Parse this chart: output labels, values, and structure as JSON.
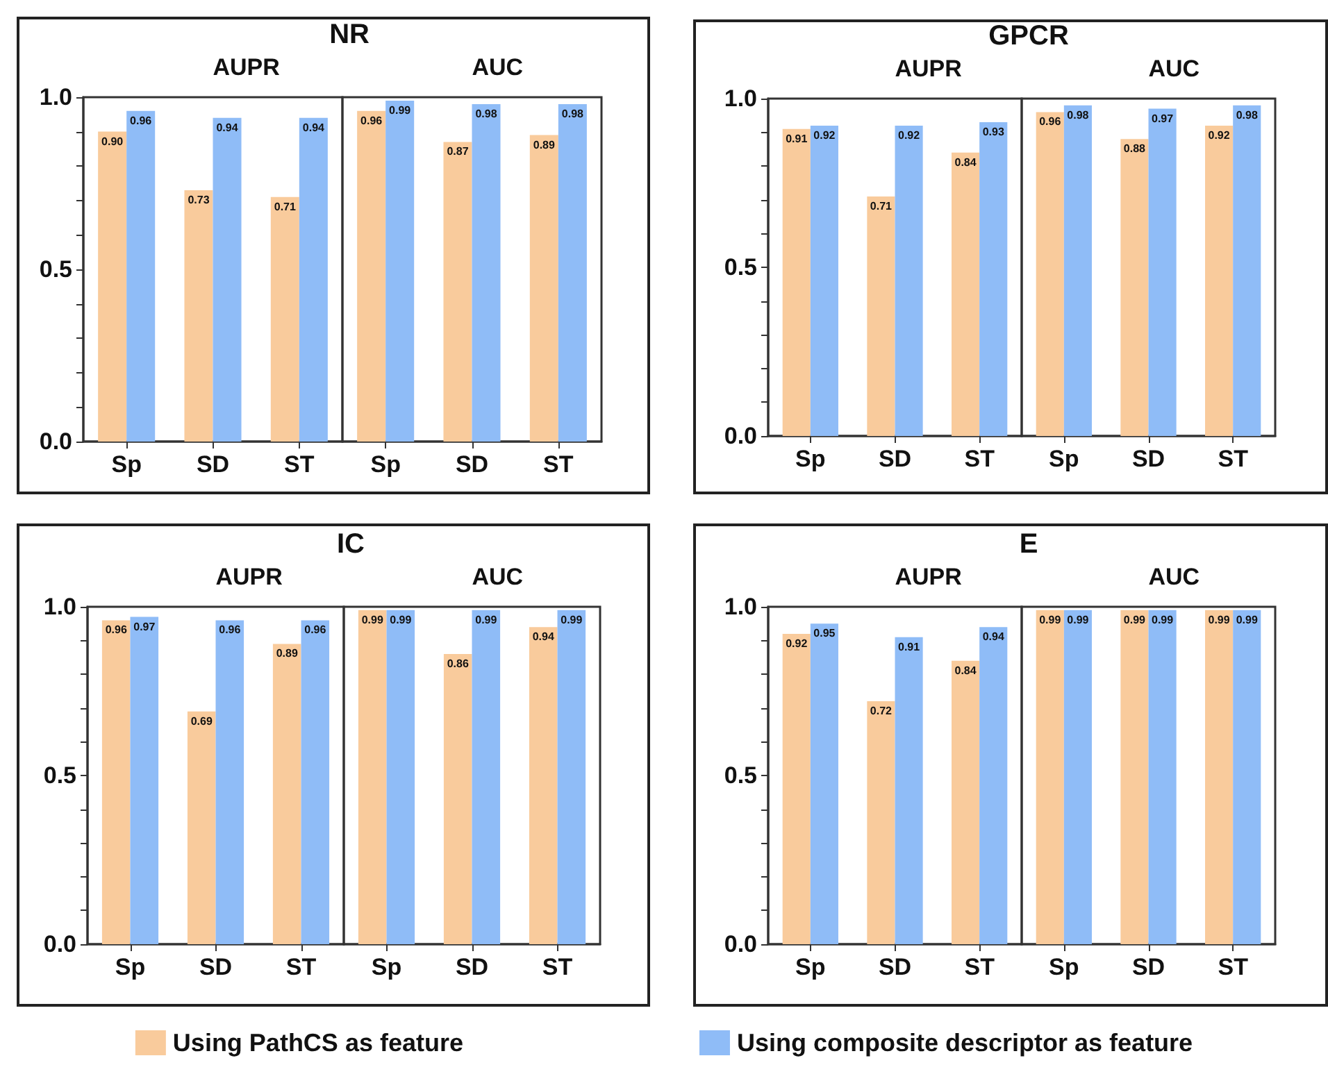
{
  "chart_data": [
    {
      "type": "bar",
      "title": "NR",
      "annotations": [
        "AUPR",
        "AUC"
      ],
      "categories": [
        "Sp",
        "SD",
        "ST",
        "Sp",
        "SD",
        "ST"
      ],
      "ylim": [
        0,
        1
      ],
      "yticks": [
        {
          "value": 0,
          "label": "0.0"
        },
        {
          "value": 0.1,
          "label": null
        },
        {
          "value": 0.2,
          "label": null
        },
        {
          "value": 0.3,
          "label": null
        },
        {
          "value": 0.4,
          "label": null
        },
        {
          "value": 0.5,
          "label": "0.5"
        },
        {
          "value": 0.6,
          "label": null
        },
        {
          "value": 0.7,
          "label": null
        },
        {
          "value": 0.8,
          "label": null
        },
        {
          "value": 0.9,
          "label": null
        },
        {
          "value": 1,
          "label": "1.0"
        }
      ],
      "grid": false,
      "legend": "bottom",
      "series": [
        {
          "name": "Using PathCS as feature",
          "color": "#f9cb9c",
          "values": [
            0.9,
            0.73,
            0.71,
            0.96,
            0.87,
            0.89
          ],
          "value_labels": [
            "0.90",
            "0.73",
            "0.71",
            "0.96",
            "0.87",
            "0.89"
          ]
        },
        {
          "name": "Using composite descriptor as feature",
          "color": "#8fbcf7",
          "values": [
            0.96,
            0.94,
            0.94,
            0.99,
            0.98,
            0.98
          ],
          "value_labels": [
            "0.96",
            "0.94",
            "0.94",
            "0.99",
            "0.98",
            "0.98"
          ]
        }
      ]
    },
    {
      "type": "bar",
      "title": "GPCR",
      "annotations": [
        "AUPR",
        "AUC"
      ],
      "categories": [
        "Sp",
        "SD",
        "ST",
        "Sp",
        "SD",
        "ST"
      ],
      "ylim": [
        0,
        1
      ],
      "yticks": [
        {
          "value": 0,
          "label": "0.0"
        },
        {
          "value": 0.1,
          "label": null
        },
        {
          "value": 0.2,
          "label": null
        },
        {
          "value": 0.3,
          "label": null
        },
        {
          "value": 0.4,
          "label": null
        },
        {
          "value": 0.5,
          "label": "0.5"
        },
        {
          "value": 0.6,
          "label": null
        },
        {
          "value": 0.7,
          "label": null
        },
        {
          "value": 0.8,
          "label": null
        },
        {
          "value": 0.9,
          "label": null
        },
        {
          "value": 1,
          "label": "1.0"
        }
      ],
      "grid": false,
      "legend": "bottom",
      "series": [
        {
          "name": "Using PathCS as feature",
          "color": "#f9cb9c",
          "values": [
            0.91,
            0.71,
            0.84,
            0.96,
            0.88,
            0.92
          ],
          "value_labels": [
            "0.91",
            "0.71",
            "0.84",
            "0.96",
            "0.88",
            "0.92"
          ]
        },
        {
          "name": "Using composite descriptor as feature",
          "color": "#8fbcf7",
          "values": [
            0.92,
            0.92,
            0.93,
            0.98,
            0.97,
            0.98
          ],
          "value_labels": [
            "0.92",
            "0.92",
            "0.93",
            "0.98",
            "0.97",
            "0.98"
          ]
        }
      ]
    },
    {
      "type": "bar",
      "title": "IC",
      "annotations": [
        "AUPR",
        "AUC"
      ],
      "categories": [
        "Sp",
        "SD",
        "ST",
        "Sp",
        "SD",
        "ST"
      ],
      "ylim": [
        0,
        1
      ],
      "yticks": [
        {
          "value": 0,
          "label": "0.0"
        },
        {
          "value": 0.1,
          "label": null
        },
        {
          "value": 0.2,
          "label": null
        },
        {
          "value": 0.3,
          "label": null
        },
        {
          "value": 0.4,
          "label": null
        },
        {
          "value": 0.5,
          "label": "0.5"
        },
        {
          "value": 0.6,
          "label": null
        },
        {
          "value": 0.7,
          "label": null
        },
        {
          "value": 0.8,
          "label": null
        },
        {
          "value": 0.9,
          "label": null
        },
        {
          "value": 1,
          "label": "1.0"
        }
      ],
      "grid": false,
      "legend": "bottom",
      "series": [
        {
          "name": "Using PathCS as feature",
          "color": "#f9cb9c",
          "values": [
            0.96,
            0.69,
            0.89,
            0.99,
            0.86,
            0.94
          ],
          "value_labels": [
            "0.96",
            "0.69",
            "0.89",
            "0.99",
            "0.86",
            "0.94"
          ]
        },
        {
          "name": "Using composite descriptor as feature",
          "color": "#8fbcf7",
          "values": [
            0.97,
            0.96,
            0.96,
            0.99,
            0.99,
            0.99
          ],
          "value_labels": [
            "0.97",
            "0.96",
            "0.96",
            "0.99",
            "0.99",
            "0.99"
          ]
        }
      ]
    },
    {
      "type": "bar",
      "title": "E",
      "annotations": [
        "AUPR",
        "AUC"
      ],
      "categories": [
        "Sp",
        "SD",
        "ST",
        "Sp",
        "SD",
        "ST"
      ],
      "ylim": [
        0,
        1
      ],
      "yticks": [
        {
          "value": 0,
          "label": "0.0"
        },
        {
          "value": 0.1,
          "label": null
        },
        {
          "value": 0.2,
          "label": null
        },
        {
          "value": 0.3,
          "label": null
        },
        {
          "value": 0.4,
          "label": null
        },
        {
          "value": 0.5,
          "label": "0.5"
        },
        {
          "value": 0.6,
          "label": null
        },
        {
          "value": 0.7,
          "label": null
        },
        {
          "value": 0.8,
          "label": null
        },
        {
          "value": 0.9,
          "label": null
        },
        {
          "value": 1,
          "label": "1.0"
        }
      ],
      "grid": false,
      "legend": "bottom",
      "series": [
        {
          "name": "Using PathCS as feature",
          "color": "#f9cb9c",
          "values": [
            0.92,
            0.72,
            0.84,
            0.99,
            0.99,
            0.99
          ],
          "value_labels": [
            "0.92",
            "0.72",
            "0.84",
            "0.99",
            "0.99",
            "0.99"
          ]
        },
        {
          "name": "Using composite descriptor as feature",
          "color": "#8fbcf7",
          "values": [
            0.95,
            0.91,
            0.94,
            0.99,
            0.99,
            0.99
          ],
          "value_labels": [
            "0.95",
            "0.91",
            "0.94",
            "0.99",
            "0.99",
            "0.99"
          ]
        }
      ]
    }
  ]
}
